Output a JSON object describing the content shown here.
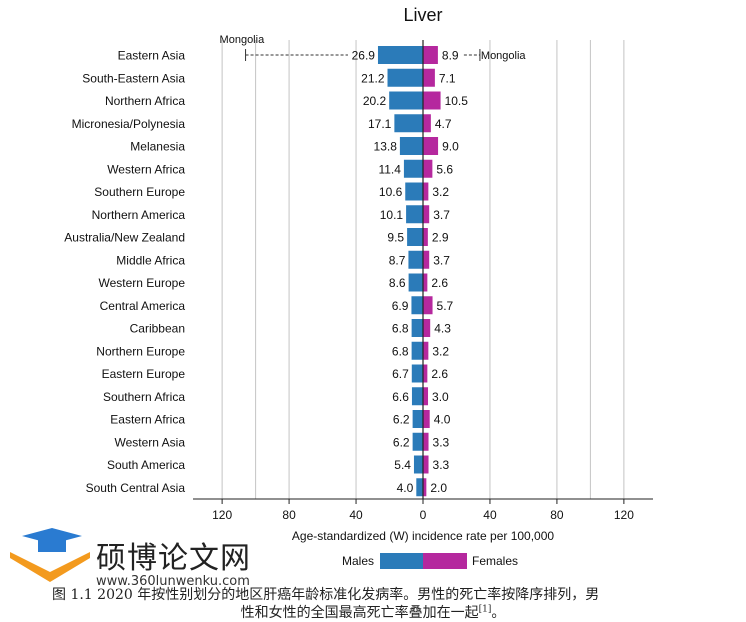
{
  "chart_data": {
    "type": "bar",
    "orientation": "horizontal-back-to-back",
    "title": "Liver",
    "xlabel": "Age-standardized (W) incidence rate per 100,000",
    "xlim": [
      -130,
      130
    ],
    "xticks": [
      {
        "value": -120,
        "label": "120"
      },
      {
        "value": -80,
        "label": "80"
      },
      {
        "value": -40,
        "label": "40"
      },
      {
        "value": 0,
        "label": "0"
      },
      {
        "value": 40,
        "label": "40"
      },
      {
        "value": 80,
        "label": "80"
      },
      {
        "value": 120,
        "label": "120"
      }
    ],
    "grid": true,
    "legend_position": "bottom",
    "categories": [
      "Eastern Asia",
      "South-Eastern Asia",
      "Northern Africa",
      "Micronesia/Polynesia",
      "Melanesia",
      "Western Africa",
      "Southern Europe",
      "Northern America",
      "Australia/New Zealand",
      "Middle Africa",
      "Western Europe",
      "Central America",
      "Caribbean",
      "Northern Europe",
      "Eastern Europe",
      "Southern Africa",
      "Eastern Africa",
      "Western Asia",
      "South America",
      "South Central Asia"
    ],
    "series": [
      {
        "name": "Males",
        "color": "#2b7bb9",
        "side": "left",
        "values": [
          26.9,
          21.2,
          20.2,
          17.1,
          13.8,
          11.4,
          10.6,
          10.1,
          9.5,
          8.7,
          8.6,
          6.9,
          6.8,
          6.8,
          6.7,
          6.6,
          6.2,
          6.2,
          5.4,
          4.0
        ],
        "labels": [
          "26.9",
          "21.2",
          "20.2",
          "17.1",
          "13.8",
          "11.4",
          "10.6",
          "10.1",
          "9.5",
          "8.7",
          "8.6",
          "6.9",
          "6.8",
          "6.8",
          "6.7",
          "6.6",
          "6.2",
          "6.2",
          "5.4",
          "4.0"
        ]
      },
      {
        "name": "Females",
        "color": "#b5289e",
        "side": "right",
        "values": [
          8.9,
          7.1,
          10.5,
          4.7,
          9.0,
          5.6,
          3.2,
          3.7,
          2.9,
          3.7,
          2.6,
          5.7,
          4.3,
          3.2,
          2.6,
          3.0,
          4.0,
          3.3,
          3.3,
          2.0
        ],
        "labels": [
          "8.9",
          "7.1",
          "10.5",
          "4.7",
          "9.0",
          "5.6",
          "3.2",
          "3.7",
          "2.9",
          "3.7",
          "2.6",
          "5.7",
          "4.3",
          "3.2",
          "2.6",
          "3.0",
          "4.0",
          "3.3",
          "3.3",
          "2.0"
        ]
      }
    ],
    "annotations": [
      {
        "label": "Mongolia",
        "series": "Males",
        "value": 106
      },
      {
        "label": "Mongolia",
        "series": "Females",
        "value": 34
      }
    ],
    "legend": [
      "Males",
      "Females"
    ]
  },
  "watermark": {
    "site_name": "硕博论文网",
    "url": "www.360lunwenku.com"
  },
  "caption": {
    "line1": "图 1.1   2020 年按性别划分的地区肝癌年龄标准化发病率。男性的死亡率按降序排列，男",
    "line2": "性和女性的全国最高死亡率叠加在一起",
    "ref": "[1]",
    "end": "。"
  }
}
